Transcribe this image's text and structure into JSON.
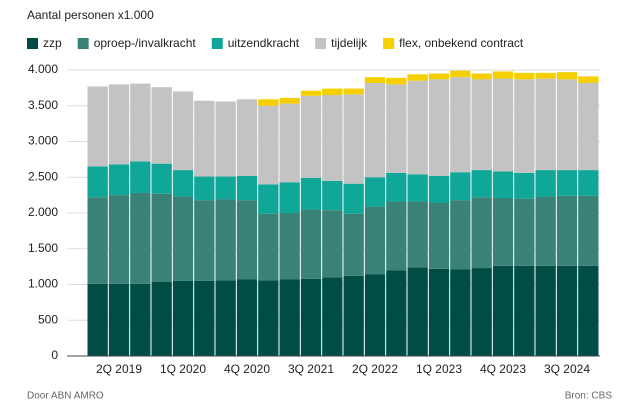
{
  "chart_data": {
    "type": "stacked_bar",
    "y_label": "Aantal personen x1.000",
    "credit": "Door ABN AMRO",
    "source": "Bron: CBS",
    "categories": [
      null,
      "2Q 2019",
      null,
      null,
      "1Q 2020",
      null,
      null,
      "4Q 2020",
      null,
      null,
      "3Q 2021",
      null,
      null,
      "2Q 2022",
      null,
      null,
      "1Q 2023",
      null,
      null,
      "4Q 2023",
      null,
      null,
      "3Q 2024",
      null
    ],
    "series": [
      {
        "name": "zzp",
        "color": "#004d45",
        "values": [
          1010,
          1010,
          1010,
          1040,
          1050,
          1050,
          1060,
          1070,
          1060,
          1070,
          1080,
          1100,
          1120,
          1140,
          1200,
          1240,
          1220,
          1210,
          1230,
          1260,
          1260,
          1260,
          1260,
          1260
        ]
      },
      {
        "name": "oproep-/invalkracht",
        "color": "#3a8278",
        "values": [
          1210,
          1240,
          1270,
          1230,
          1180,
          1130,
          1130,
          1110,
          930,
          930,
          970,
          940,
          870,
          950,
          960,
          920,
          920,
          970,
          990,
          950,
          940,
          970,
          980,
          980
        ]
      },
      {
        "name": "uitzendkracht",
        "color": "#10a698",
        "values": [
          430,
          430,
          440,
          420,
          370,
          330,
          320,
          340,
          410,
          430,
          440,
          410,
          420,
          410,
          400,
          380,
          380,
          390,
          380,
          370,
          360,
          370,
          360,
          360
        ]
      },
      {
        "name": "tijdelijk",
        "color": "#c3c3c3",
        "values": [
          1120,
          1120,
          1090,
          1070,
          1100,
          1060,
          1050,
          1070,
          1100,
          1100,
          1150,
          1200,
          1250,
          1320,
          1240,
          1310,
          1350,
          1330,
          1270,
          1300,
          1310,
          1280,
          1270,
          1220
        ]
      },
      {
        "name": "flex, onbekend contract",
        "color": "#f5cf00",
        "values": [
          0,
          0,
          0,
          0,
          0,
          0,
          0,
          0,
          90,
          80,
          70,
          90,
          80,
          80,
          90,
          90,
          80,
          90,
          80,
          100,
          90,
          80,
          100,
          90
        ]
      }
    ],
    "ylim": [
      0,
      4000
    ],
    "yticks": [
      0,
      {
        "value": 500,
        "label": "500"
      },
      {
        "value": 1000,
        "label": "1.000"
      },
      {
        "value": 1500,
        "label": "1.500"
      },
      {
        "value": 2000,
        "label": "2.000"
      },
      {
        "value": 2500,
        "label": "2.500"
      },
      {
        "value": 3000,
        "label": "3.000"
      },
      {
        "value": 3500,
        "label": "3.500"
      },
      {
        "value": 4000,
        "label": "4.000"
      }
    ],
    "grid": true
  }
}
